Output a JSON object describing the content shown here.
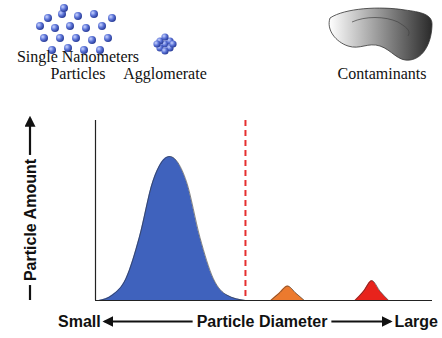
{
  "chart_data": {
    "type": "area",
    "xlabel": "Particle Diameter",
    "ylabel": "Particle Amount",
    "annotations": [
      "Small",
      "Large"
    ],
    "xlim": [
      0,
      100
    ],
    "ylim": [
      0,
      100
    ],
    "xticks": [],
    "yticks": [],
    "tick_labels": false,
    "legend": "top",
    "cutoff": 44.5,
    "series": [
      {
        "name": "Single Nanometers Particles",
        "color": "#3f62bd",
        "x": [
          1,
          5,
          9,
          13,
          17,
          22,
          27,
          31,
          35,
          39,
          44.5
        ],
        "values": [
          0,
          3,
          12,
          35,
          66,
          80,
          66,
          35,
          12,
          3,
          0
        ]
      },
      {
        "name": "Agglomerate",
        "color": "#ec7a2e",
        "x": [
          52,
          54.5,
          57,
          59.5,
          62
        ],
        "values": [
          0,
          4,
          8,
          4,
          0
        ]
      },
      {
        "name": "Contaminants",
        "color": "#e8231c",
        "x": [
          77,
          79.5,
          82,
          84.5,
          87
        ],
        "values": [
          0,
          5,
          11,
          5,
          0
        ]
      }
    ]
  }
}
